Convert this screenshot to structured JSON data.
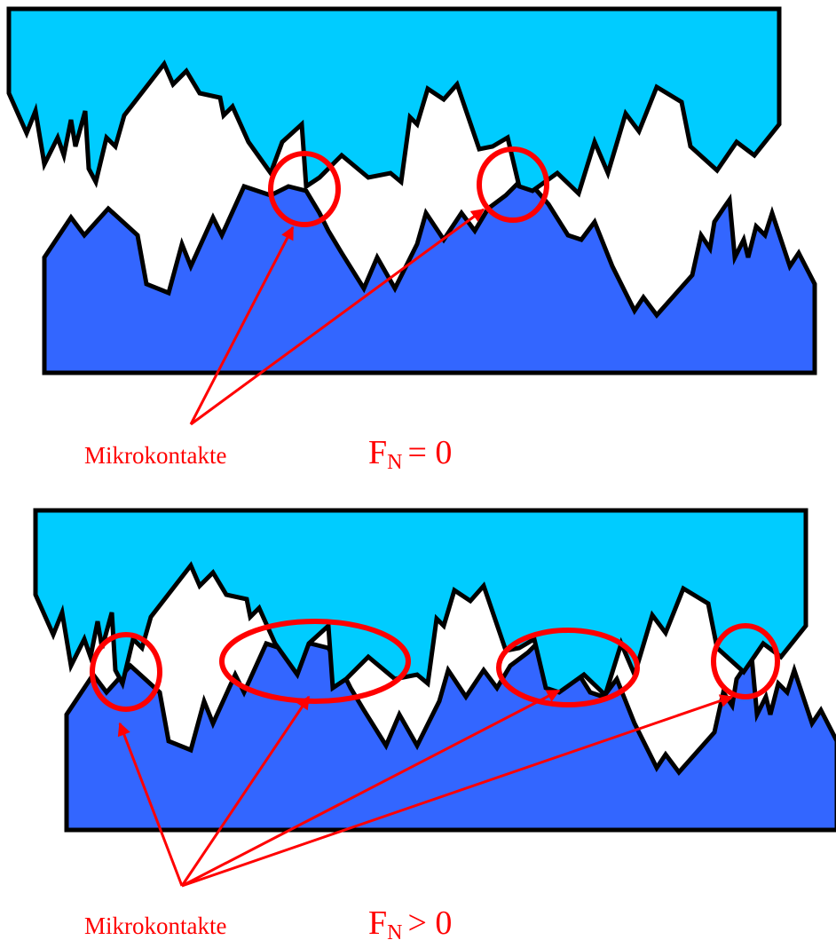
{
  "panels": [
    {
      "label": "Mikrokontakte",
      "force": {
        "symbol": "F",
        "subscript": "N",
        "relation": "= 0"
      }
    },
    {
      "label": "Mikrokontakte",
      "force": {
        "symbol": "F",
        "subscript": "N",
        "relation": "> 0"
      }
    }
  ]
}
